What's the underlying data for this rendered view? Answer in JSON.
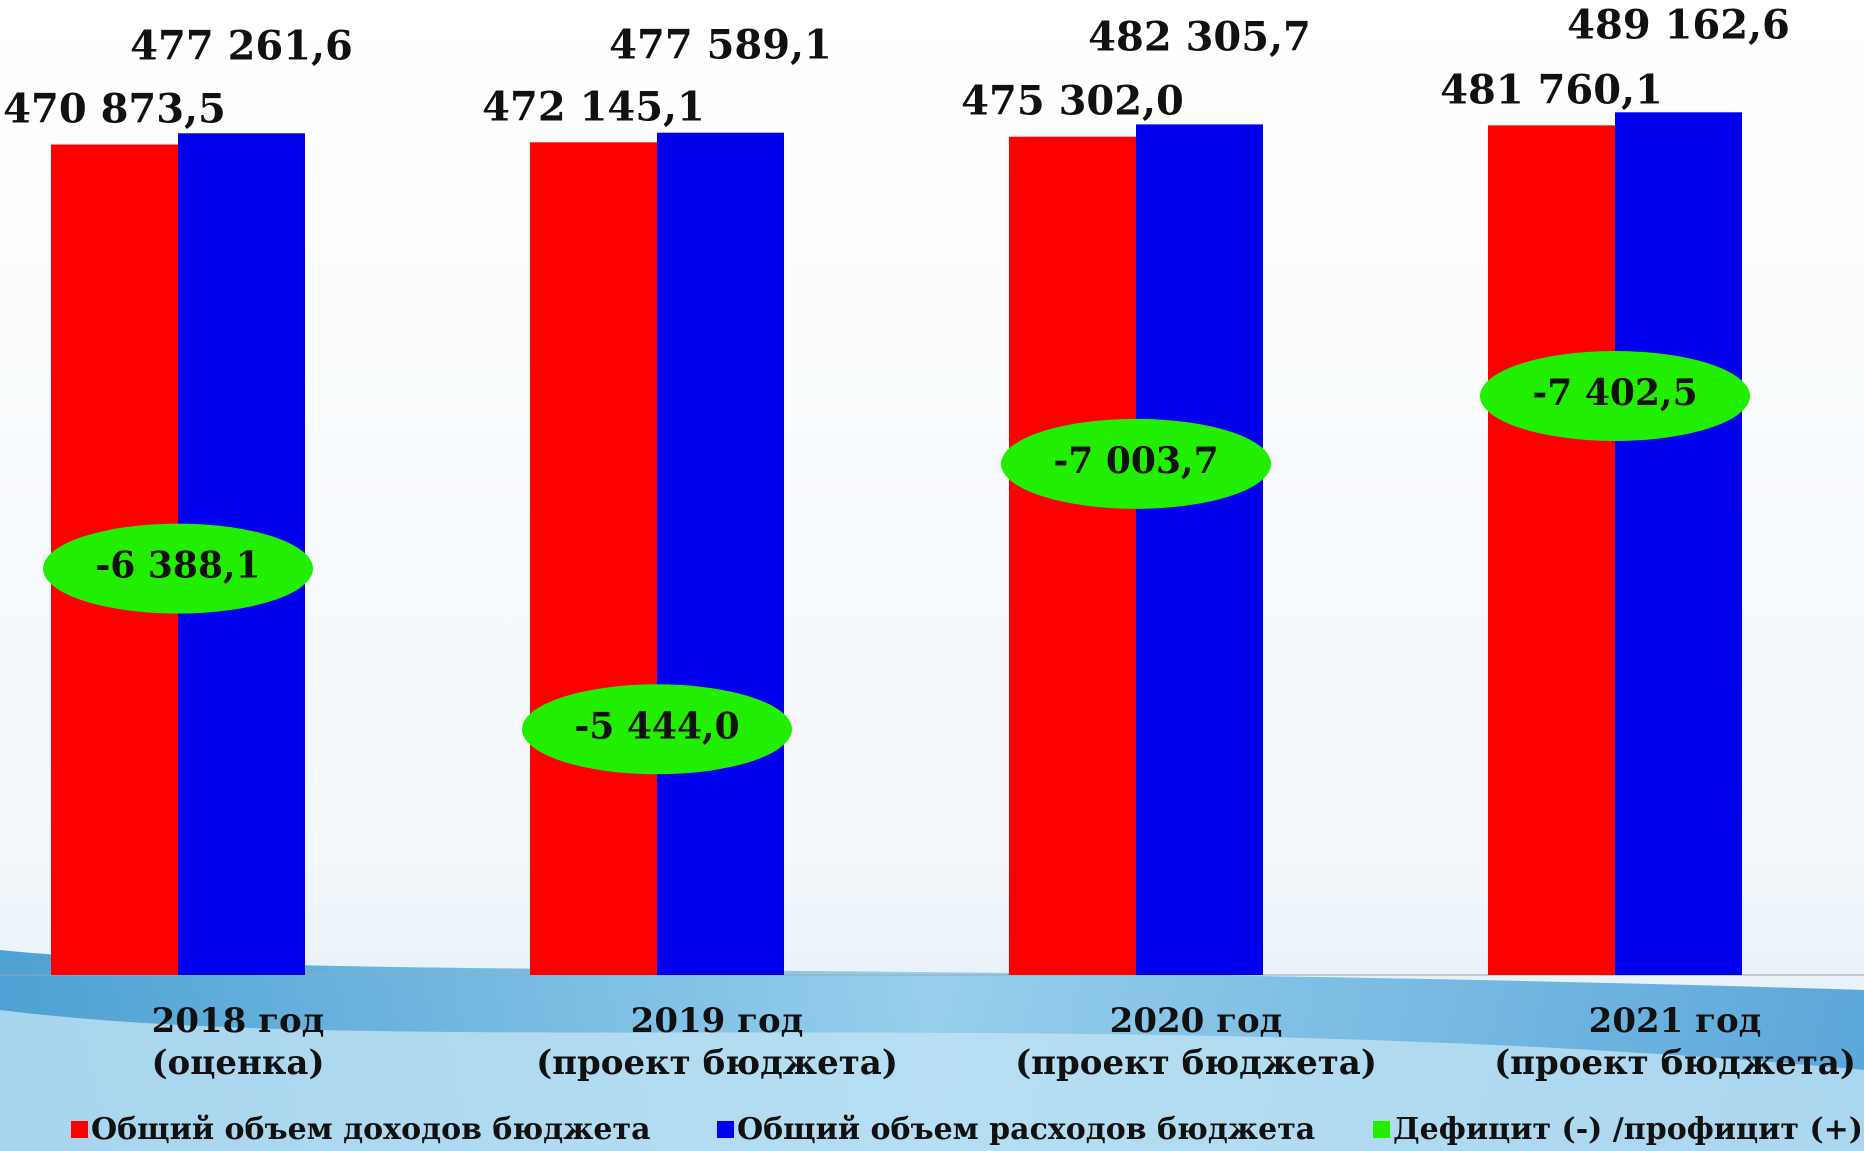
{
  "chart_data": {
    "type": "bar",
    "categories": [
      "2018 год\n(оценка)",
      "2019 год\n(проект бюджета)",
      "2020 год\n(проект бюджета)",
      "2021 год\n(проект бюджета)"
    ],
    "ylim": [
      0,
      550000
    ],
    "y2lim": [
      -4000,
      -9700
    ],
    "legend": "bottom",
    "series": [
      {
        "name": "Общий объем доходов бюджета",
        "color": "#ff0000",
        "values": [
          470873.5,
          472145.1,
          475302.0,
          481760.1
        ],
        "value_labels": [
          "470 873,5",
          "472 145,1",
          "475 302,0",
          "481 760,1"
        ]
      },
      {
        "name": "Общий объем расходов бюджета",
        "color": "#0000ee",
        "values": [
          477261.6,
          477589.1,
          482305.7,
          489162.6
        ],
        "value_labels": [
          "477 261,6",
          "477 589,1",
          "482 305,7",
          "489 162,6"
        ]
      },
      {
        "name": "Дефицит (-) /профицит (+)",
        "color": "#22ee00",
        "axis": "y2",
        "type": "ellipse",
        "values": [
          -6388.1,
          -5444.0,
          -7003.7,
          -7402.5
        ],
        "value_labels": [
          "-6 388,1",
          "-5 444,0",
          "-7 003,7",
          "-7 402,5"
        ]
      }
    ]
  }
}
